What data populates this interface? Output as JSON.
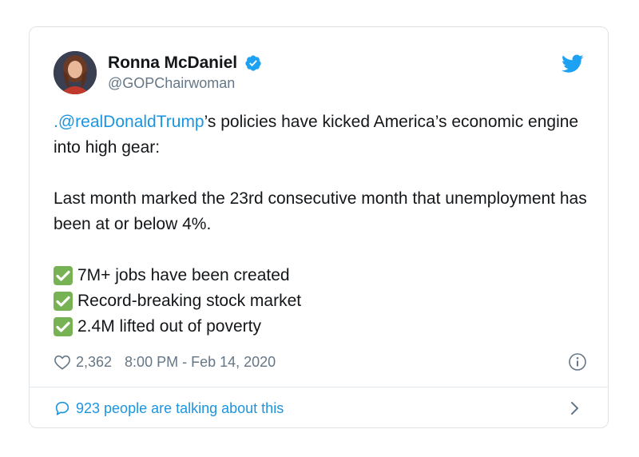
{
  "tweet": {
    "author": {
      "display_name": "Ronna McDaniel",
      "handle": "@GOPChairwoman",
      "verified": true
    },
    "text": {
      "mention": ".@realDonaldTrump",
      "line1_rest": "’s policies have kicked America’s economic engine into high gear:",
      "paragraph2": "Last month marked the 23rd consecutive month that unemployment has been at or below 4%.",
      "bullets": [
        "7M+ jobs have been created",
        "Record-breaking stock market",
        "2.4M lifted out of poverty"
      ]
    },
    "meta": {
      "likes": "2,362",
      "timestamp": "8:00 PM - Feb 14, 2020"
    },
    "footer": {
      "conversation_label": "923 people are talking about this"
    },
    "icons": {
      "brand": "twitter-bird-icon",
      "verified": "verified-badge-icon",
      "like": "heart-icon",
      "info": "info-icon",
      "reply": "speech-bubble-icon",
      "more": "chevron-right-icon",
      "check": "check-mark-icon"
    },
    "colors": {
      "link": "#1b95e0",
      "secondary_text": "#657786",
      "check_green": "#77b255",
      "twitter_blue": "#1da1f2"
    }
  }
}
